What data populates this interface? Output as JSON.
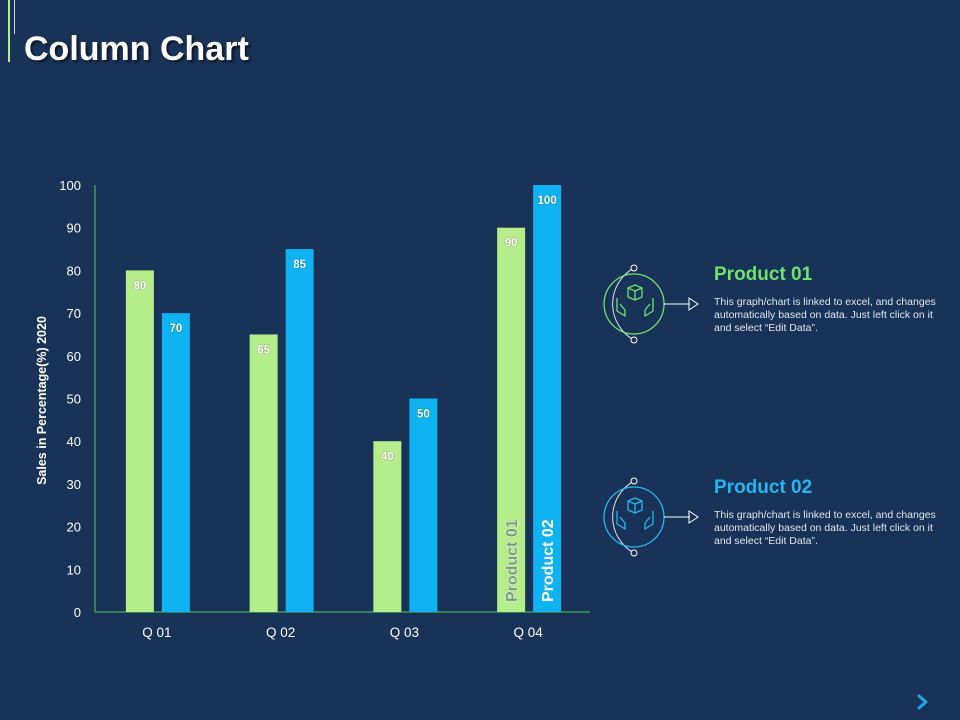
{
  "page": {
    "title": "Column Chart"
  },
  "colors": {
    "background": "#183357",
    "product_01": "#b5ed8a",
    "product_02": "#0fb2f2",
    "title_product_01": "#6ee36e",
    "title_product_02": "#26b6f4",
    "axis": "#4fd14f",
    "next_arrow": "#1ea7e8"
  },
  "chart_data": {
    "type": "bar",
    "title": "",
    "xlabel": "",
    "ylabel": "Sales in Percentage(%) 2020",
    "ylim": [
      0,
      100
    ],
    "yticks": [
      0,
      10,
      20,
      30,
      40,
      50,
      60,
      70,
      80,
      90,
      100
    ],
    "categories": [
      "Q 01",
      "Q 02",
      "Q 03",
      "Q 04"
    ],
    "series": [
      {
        "name": "Product 01",
        "values": [
          80,
          65,
          40,
          90
        ]
      },
      {
        "name": "Product 02",
        "values": [
          70,
          85,
          50,
          100
        ]
      }
    ],
    "in_bar_labels": [
      "Product 01",
      "Product 02"
    ]
  },
  "legend": [
    {
      "title": "Product 01",
      "description": "This graph/chart is linked to excel, and changes automatically based on data. Just left click on it and select “Edit Data”.",
      "icon": "box-in-hands-icon"
    },
    {
      "title": "Product 02",
      "description": "This graph/chart is linked to excel, and changes automatically based on data. Just left click on it and select “Edit Data”.",
      "icon": "box-in-hands-icon"
    }
  ],
  "navigation": {
    "next_icon": "chevron-right-icon"
  }
}
